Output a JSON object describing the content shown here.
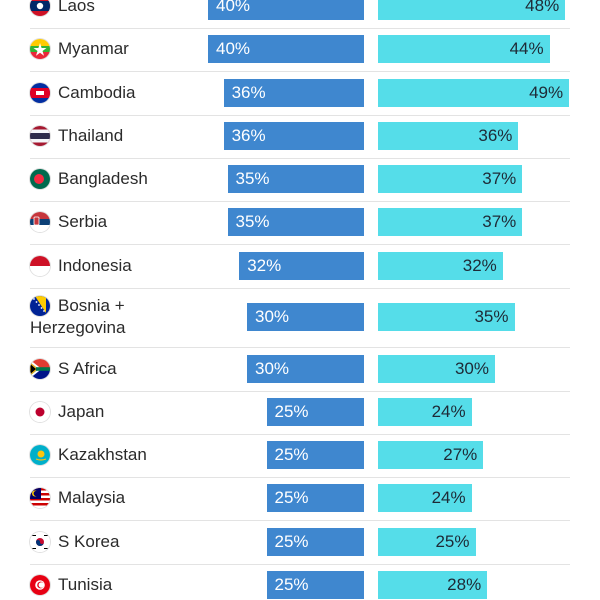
{
  "chart_data": {
    "type": "bar",
    "title": "",
    "series": [
      {
        "color": "#3f87cf"
      },
      {
        "color": "#55dde9"
      }
    ],
    "rows": [
      {
        "country": "Laos",
        "flag": "laos-flag-icon",
        "left": "40%",
        "left_value": 40,
        "right": "48%",
        "right_value": 48
      },
      {
        "country": "Myanmar",
        "flag": "myanmar-flag-icon",
        "left": "40%",
        "left_value": 40,
        "right": "44%",
        "right_value": 44
      },
      {
        "country": "Cambodia",
        "flag": "cambodia-flag-icon",
        "left": "36%",
        "left_value": 36,
        "right": "49%",
        "right_value": 49
      },
      {
        "country": "Thailand",
        "flag": "thailand-flag-icon",
        "left": "36%",
        "left_value": 36,
        "right": "36%",
        "right_value": 36
      },
      {
        "country": "Bangladesh",
        "flag": "bangladesh-flag-icon",
        "left": "35%",
        "left_value": 35,
        "right": "37%",
        "right_value": 37
      },
      {
        "country": "Serbia",
        "flag": "serbia-flag-icon",
        "left": "35%",
        "left_value": 35,
        "right": "37%",
        "right_value": 37
      },
      {
        "country": "Indonesia",
        "flag": "indonesia-flag-icon",
        "left": "32%",
        "left_value": 32,
        "right": "32%",
        "right_value": 32
      },
      {
        "country": "Bosnia + Herzegovina",
        "flag": "bosnia-flag-icon",
        "left": "30%",
        "left_value": 30,
        "right": "35%",
        "right_value": 35
      },
      {
        "country": "S Africa",
        "flag": "south-africa-flag-icon",
        "left": "30%",
        "left_value": 30,
        "right": "30%",
        "right_value": 30
      },
      {
        "country": "Japan",
        "flag": "japan-flag-icon",
        "left": "25%",
        "left_value": 25,
        "right": "24%",
        "right_value": 24
      },
      {
        "country": "Kazakhstan",
        "flag": "kazakhstan-flag-icon",
        "left": "25%",
        "left_value": 25,
        "right": "27%",
        "right_value": 27
      },
      {
        "country": "Malaysia",
        "flag": "malaysia-flag-icon",
        "left": "25%",
        "left_value": 25,
        "right": "24%",
        "right_value": 24
      },
      {
        "country": "S Korea",
        "flag": "south-korea-flag-icon",
        "left": "25%",
        "left_value": 25,
        "right": "25%",
        "right_value": 25
      },
      {
        "country": "Tunisia",
        "flag": "tunisia-flag-icon",
        "left": "25%",
        "left_value": 25,
        "right": "28%",
        "right_value": 28
      }
    ]
  }
}
